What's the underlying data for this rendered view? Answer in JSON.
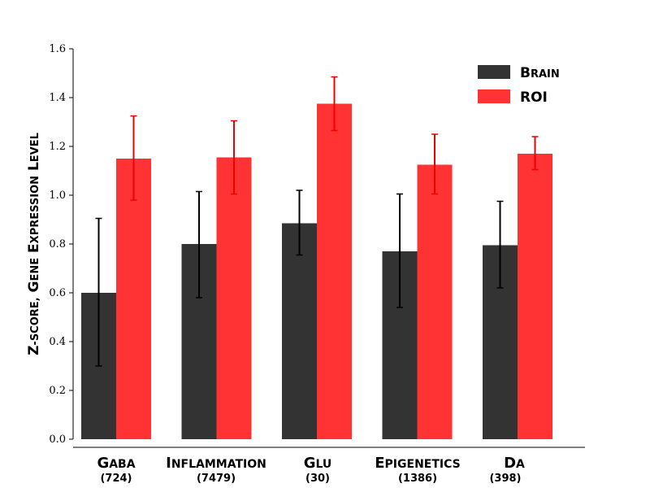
{
  "chart_data": {
    "type": "bar",
    "title": "",
    "xlabel": "",
    "ylabel": "Z-score, Gene Expression Level",
    "ylim": [
      0.0,
      1.6
    ],
    "yticks": [
      "0.0",
      "0.2",
      "0.4",
      "0.6",
      "0.8",
      "1.0",
      "1.2",
      "1.4",
      "1.6"
    ],
    "categories": [
      "GABA",
      "Inflammation",
      "Glu",
      "Epigenetics",
      "DA"
    ],
    "category_counts": [
      "(724)",
      "(7479)",
      "(30)",
      "(1386)",
      "(398)"
    ],
    "series": [
      {
        "name": "Brain",
        "color": "#333333",
        "values": [
          0.6,
          0.8,
          0.885,
          0.77,
          0.795
        ],
        "err_low": [
          0.3,
          0.58,
          0.755,
          0.54,
          0.62
        ],
        "err_high": [
          0.905,
          1.015,
          1.02,
          1.005,
          0.975
        ]
      },
      {
        "name": "ROI",
        "color": "#ff3333",
        "values": [
          1.15,
          1.155,
          1.375,
          1.125,
          1.17
        ],
        "err_low": [
          0.98,
          1.005,
          1.265,
          1.005,
          1.105
        ],
        "err_high": [
          1.325,
          1.305,
          1.485,
          1.25,
          1.24
        ]
      }
    ],
    "legend_position": "top-right",
    "grid": false
  }
}
